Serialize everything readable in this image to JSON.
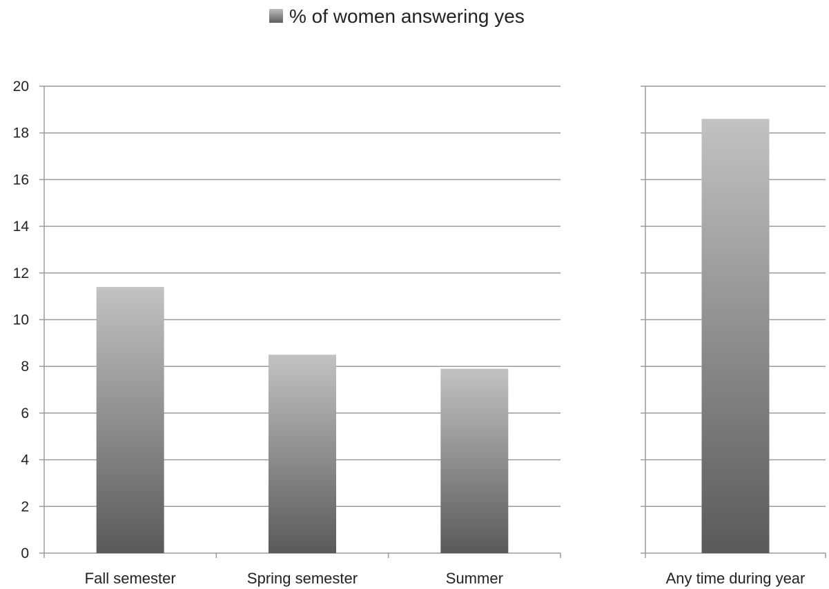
{
  "chart_data": [
    {
      "type": "bar",
      "categories": [
        "Fall semester",
        "Spring semester",
        "Summer"
      ],
      "series": [
        {
          "name": "% of women answering yes",
          "values": [
            11.4,
            8.5,
            7.9
          ]
        }
      ],
      "ylim": [
        0,
        20
      ],
      "yticks": [
        0,
        2,
        4,
        6,
        8,
        10,
        12,
        14,
        16,
        18,
        20
      ],
      "grid": true
    },
    {
      "type": "bar",
      "categories": [
        "Any time during year"
      ],
      "series": [
        {
          "name": "% of women answering yes",
          "values": [
            18.6
          ]
        }
      ],
      "ylim": [
        0,
        20
      ],
      "yticks": [
        0,
        2,
        4,
        6,
        8,
        10,
        12,
        14,
        16,
        18,
        20
      ],
      "grid": true
    }
  ],
  "legend": {
    "label": "% of women answering yes",
    "placement": "top-center",
    "gradient_light": "#bdbdbd",
    "gradient_dark": "#5e5e5e"
  },
  "colors": {
    "bar_light": "#c2c2c2",
    "bar_dark": "#5a5a5a",
    "grid": "#9a9a9a"
  }
}
